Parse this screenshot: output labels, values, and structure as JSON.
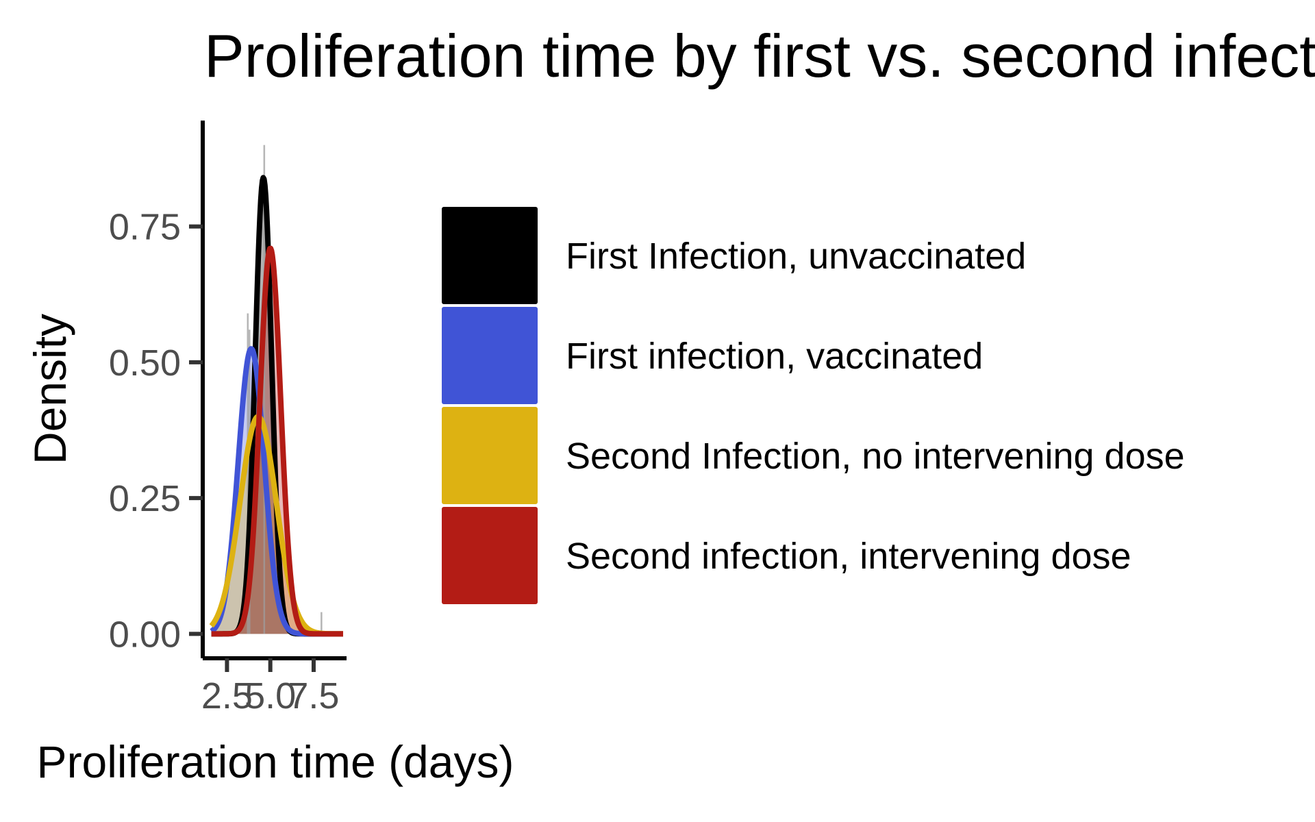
{
  "chart_data": {
    "type": "area",
    "title": "Proliferation time by first vs. second infection",
    "xlabel": "Proliferation time (days)",
    "ylabel": "Density",
    "x_ticks": [
      "2.5",
      "5.0",
      "7.5"
    ],
    "y_ticks": [
      "0.00",
      "0.25",
      "0.50",
      "0.75"
    ],
    "xlim": [
      1.1,
      9.4
    ],
    "ylim": [
      -0.045,
      0.945
    ],
    "grid": false,
    "legend_position": "right",
    "histogram": {
      "bins": [
        {
          "x0": 3.65,
          "x1": 3.75,
          "value": 0.59
        },
        {
          "x0": 3.75,
          "x1": 3.85,
          "value": 0.56
        },
        {
          "x0": 4.6,
          "x1": 4.7,
          "value": 0.9
        },
        {
          "x0": 7.9,
          "x1": 8.0,
          "value": 0.04
        }
      ]
    },
    "series": [
      {
        "name": "First Infection, unvaccinated",
        "color": "#000000",
        "mean": 4.6,
        "sd": 0.475,
        "peak": 0.84
      },
      {
        "name": "First infection, vaccinated",
        "color": "#4054d6",
        "mean": 3.9,
        "sd": 0.75,
        "peak": 0.525
      },
      {
        "name": "Second Infection, no intervening dose",
        "color": "#ddb212",
        "mean": 4.3,
        "sd": 1.05,
        "peak": 0.4
      },
      {
        "name": "Second infection, intervening dose",
        "color": "#b31c15",
        "mean": 5.0,
        "sd": 0.6,
        "peak": 0.71
      }
    ]
  }
}
